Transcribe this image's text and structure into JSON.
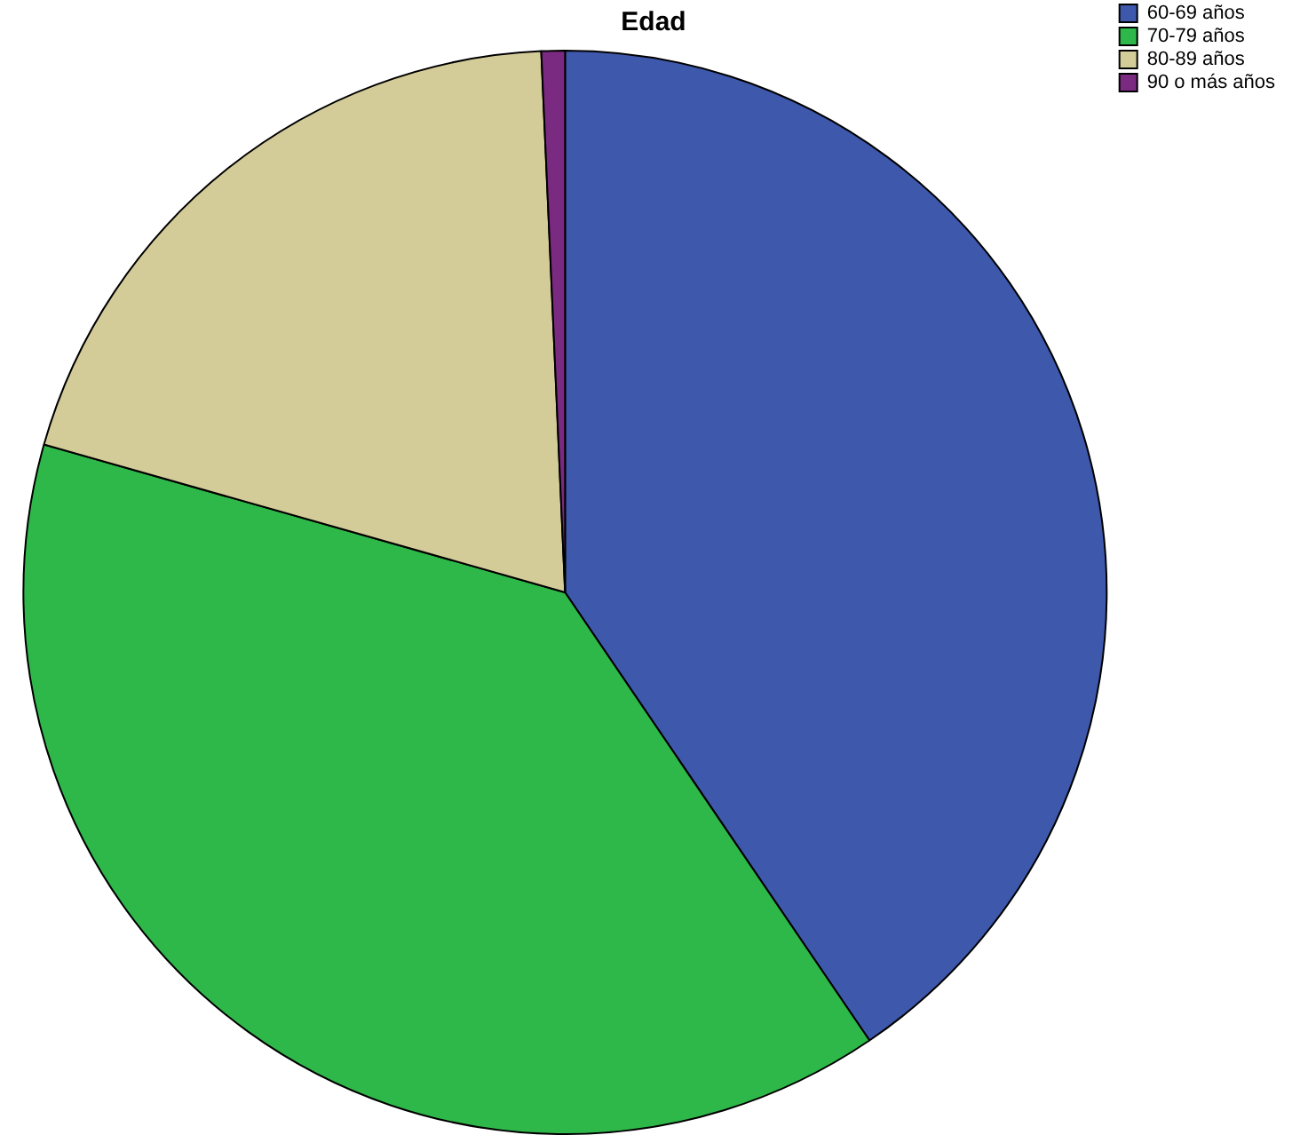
{
  "chart_data": {
    "type": "pie",
    "title": "Edad",
    "categories": [
      "60-69 años",
      "70-79 años",
      "80-89 años",
      "90 o más años"
    ],
    "values": [
      40.5,
      38.9,
      19.9,
      0.7
    ],
    "colors": [
      "#3e58ac",
      "#2fb84a",
      "#d4cc98",
      "#7a2a80"
    ],
    "legend": "top right"
  }
}
